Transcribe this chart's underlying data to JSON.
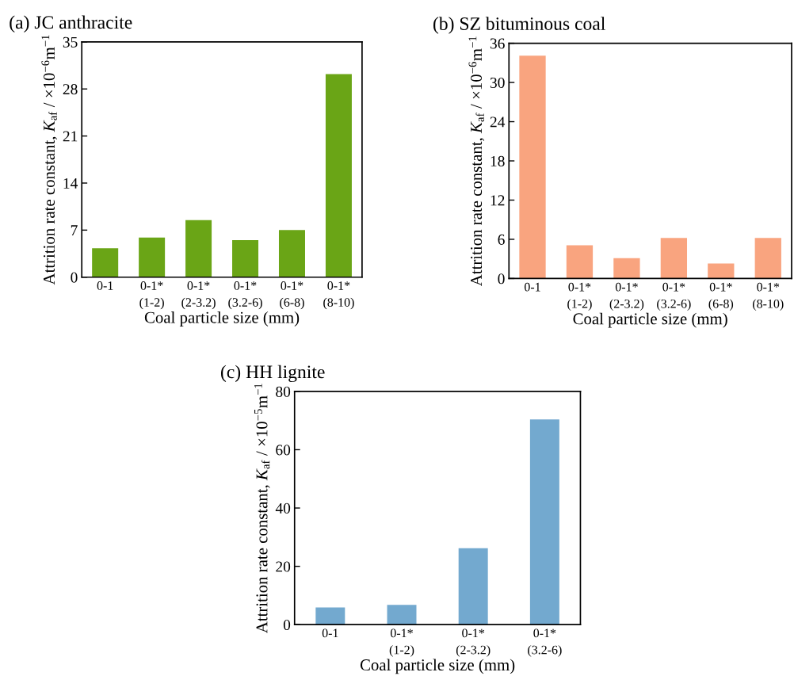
{
  "chart_data": [
    {
      "type": "bar",
      "title": "(a) JC anthracite",
      "xlabel": "Coal particle size (mm)",
      "ylabel": "Attrition rate constant, K$_{af}$ / ×10$^{−6}$m$^{−1}$",
      "categories": [
        "0-1",
        "0-1*\n(1-2)",
        "0-1*\n(2-3.2)",
        "0-1*\n(3.2-6)",
        "0-1*\n(6-8)",
        "0-1*\n(8-10)"
      ],
      "values": [
        4.3,
        5.9,
        8.5,
        5.5,
        7.0,
        30.2
      ],
      "color": "#6aa516",
      "ylim": [
        0,
        35
      ],
      "yticks": [
        0,
        7,
        14,
        21,
        28,
        35
      ],
      "grid": false,
      "legend": false
    },
    {
      "type": "bar",
      "title": "(b) SZ bituminous coal",
      "xlabel": "Coal particle size (mm)",
      "ylabel": "Attrition rate constant, K$_{af}$ / ×10$^{−6}$m$^{−1}$",
      "categories": [
        "0-1",
        "0-1*\n(1-2)",
        "0-1*\n(2-3.2)",
        "0-1*\n(3.2-6)",
        "0-1*\n(6-8)",
        "0-1*\n(8-10)"
      ],
      "values": [
        34.1,
        5.1,
        3.1,
        6.2,
        2.3,
        6.2
      ],
      "color": "#f9a47f",
      "ylim": [
        0,
        36
      ],
      "yticks": [
        0,
        6,
        12,
        18,
        24,
        30,
        36
      ],
      "grid": false,
      "legend": false
    },
    {
      "type": "bar",
      "title": "(c) HH lignite",
      "xlabel": "Coal particle size (mm)",
      "ylabel": "Attrition rate constant, K$_{af}$ / ×10$^{−5}$m$^{−1}$",
      "categories": [
        "0-1",
        "0-1*\n(1-2)",
        "0-1*\n(2-3.2)",
        "0-1*\n(3.2-6)"
      ],
      "values": [
        5.9,
        6.8,
        26.2,
        70.4
      ],
      "color": "#73a9cf",
      "ylim": [
        0,
        80
      ],
      "yticks": [
        0,
        20,
        40,
        60,
        80
      ],
      "grid": false,
      "legend": false
    }
  ]
}
